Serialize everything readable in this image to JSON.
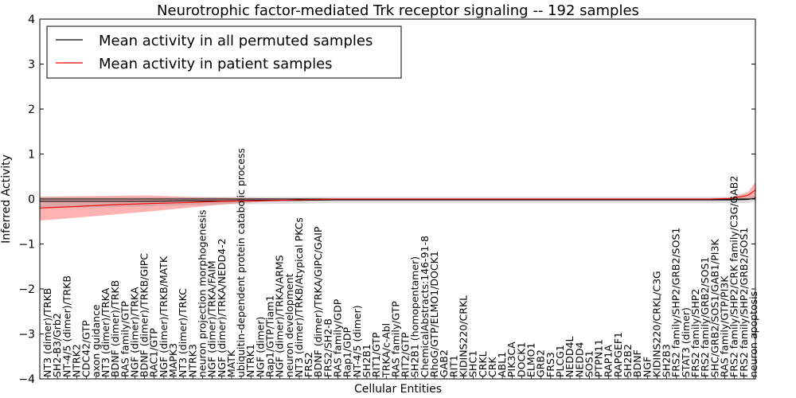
{
  "chart_data": {
    "type": "line",
    "title": "Neurotrophic factor-mediated Trk receptor signaling -- 192 samples",
    "xlabel": "Cellular Entities",
    "ylabel": "Inferred Activity",
    "ylim": [
      -4,
      4
    ],
    "yticks": [
      -4,
      -3,
      -2,
      -1,
      0,
      1,
      2,
      3,
      4
    ],
    "grid": false,
    "legend_position": "top-left",
    "legend": [
      {
        "label": "Mean activity in all permuted samples",
        "color": "#000000"
      },
      {
        "label": "Mean activity in patient samples",
        "color": "#ff0000"
      }
    ],
    "entities": [
      "NT3 (dimer)/TRKB",
      "SH2-B3/Grb2",
      "NT-4/5 (dimer)/TRKB",
      "NTRK2",
      "CDC42/GTP",
      "axon guidance",
      "NT3 (dimer)/TRKA",
      "BDNF (dimer)/TRKB",
      "RAS family/GTP",
      "NGF (dimer)/TRKA",
      "BDNF (dimer)/TRKB/GIPC",
      "RAC1/GTP",
      "NGF (dimer)/TRKB/MATK",
      "MAPK3",
      "NT3 (dimer)/TRKC",
      "NTRK3",
      "neuron projection morphogenesis",
      "NGF (dimer)/TRKA/FAIM",
      "NGF (dimer)/TRKA/NEDD4-2",
      "MATK",
      "ubiquitin-dependent protein catabolic process",
      "NTRK1",
      "NGF (dimer)",
      "Rap1/GTP/Tiam1",
      "NGF (dimer)/TRKA/ARMS",
      "neuron development",
      "NT3 (dimer)/TRKB/Atypical PKCs",
      "FRS2",
      "BDNF (dimer)/TRKA/GIPC/GAIP",
      "FRS2/SH2-B",
      "RAS family/GDP",
      "Rap1/GDP",
      "NT-4/5 (dimer)",
      "SH2B1",
      "RIT1/GTP",
      "TRKA/c-Abl",
      "RAS family/GTP",
      "RIT2/GTP",
      "SH2B1 (homopentamer)",
      "ChemicalAbstracts:146-91-8",
      "RhoG/GTP/ELMO1/DOCK1",
      "GAB2",
      "RIT1",
      "KIDINS220/CRKL",
      "SHC1",
      "CRKL",
      "CRK",
      "ABL1",
      "PIK3CA",
      "DOCK1",
      "ELMO1",
      "GRB2",
      "FRS3",
      "PLCG1",
      "NEDD4L",
      "NEDD4",
      "SOS1",
      "PTPN11",
      "RAP1A",
      "RAPGEF1",
      "SH2B2",
      "BDNF",
      "NGF",
      "KIDINS220/CRKL/C3G",
      "SH2B3",
      "FRS2 family/SHP2/GRB2/SOS1",
      "STAT3 (dimer)",
      "FRS2 family/SHP2",
      "FRS2 family/GRB2/SOS1",
      "SHC/GRB2/SOS1/GAB1/PI3K",
      "RAS family/GTP/PI3K",
      "FRS2 family/SHP2/CRK family/C3G/GAB2",
      "FRS2 family/SHP2/GRB2/SOS1",
      "neuron apoptosis"
    ],
    "x": [
      1,
      10,
      20,
      30,
      40,
      50,
      60,
      70,
      80,
      90,
      100,
      110,
      120,
      130,
      140,
      150,
      160,
      170,
      180,
      185,
      190,
      192
    ],
    "series": [
      {
        "name": "Mean activity in patient samples",
        "color": "#ff0000",
        "values": [
          -0.2,
          -0.17,
          -0.13,
          -0.1,
          -0.08,
          -0.05,
          -0.04,
          -0.02,
          0.0,
          0.0,
          0.0,
          0.0,
          0.0,
          0.0,
          0.0,
          0.0,
          0.0,
          0.0,
          0.0,
          0.01,
          0.08,
          0.2
        ],
        "lower": [
          -0.48,
          -0.42,
          -0.35,
          -0.28,
          -0.2,
          -0.12,
          -0.06,
          -0.03,
          -0.01,
          -0.01,
          -0.01,
          -0.01,
          -0.01,
          -0.01,
          -0.01,
          -0.01,
          -0.01,
          -0.01,
          -0.01,
          -0.01,
          -0.02,
          0.03
        ],
        "upper": [
          0.05,
          0.06,
          0.07,
          0.08,
          0.05,
          0.03,
          0.02,
          0.01,
          0.01,
          0.01,
          0.01,
          0.01,
          0.01,
          0.01,
          0.01,
          0.01,
          0.01,
          0.01,
          0.01,
          0.03,
          0.15,
          0.38
        ]
      },
      {
        "name": "Mean activity in all permuted samples",
        "color": "#000000",
        "values": [
          -0.05,
          -0.05,
          -0.05,
          -0.05,
          -0.04,
          -0.04,
          -0.03,
          -0.03,
          -0.02,
          -0.02,
          -0.02,
          -0.02,
          -0.02,
          -0.02,
          -0.02,
          -0.02,
          -0.02,
          -0.02,
          -0.02,
          -0.02,
          -0.01,
          0.02
        ],
        "lower": [
          -0.2,
          -0.19,
          -0.18,
          -0.16,
          -0.14,
          -0.12,
          -0.11,
          -0.1,
          -0.09,
          -0.09,
          -0.09,
          -0.09,
          -0.09,
          -0.09,
          -0.09,
          -0.09,
          -0.09,
          -0.09,
          -0.09,
          -0.09,
          -0.09,
          -0.05
        ],
        "upper": [
          0.05,
          0.05,
          0.04,
          0.04,
          0.04,
          0.05,
          0.05,
          0.05,
          0.05,
          0.05,
          0.05,
          0.05,
          0.05,
          0.05,
          0.05,
          0.05,
          0.05,
          0.05,
          0.05,
          0.05,
          0.05,
          0.08
        ]
      }
    ]
  }
}
